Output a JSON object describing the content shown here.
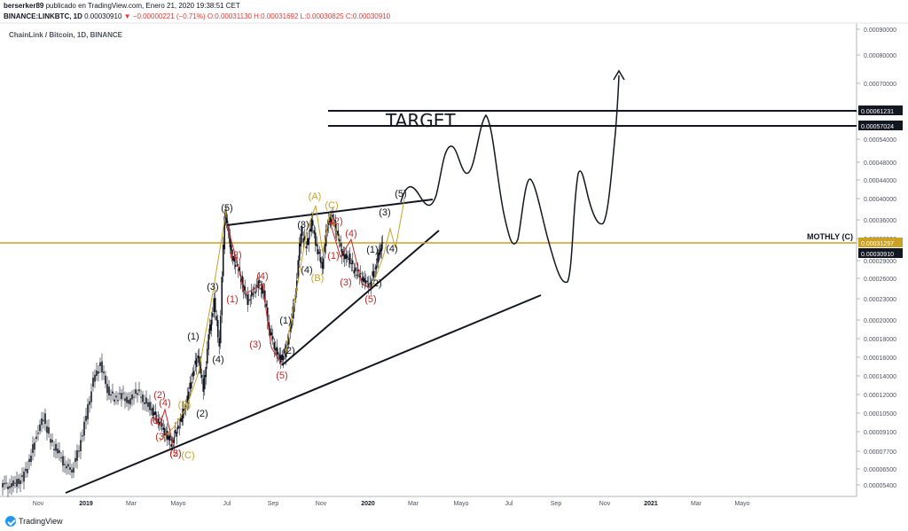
{
  "header": {
    "author": "berserker89",
    "published": "publicado en TradingView.com, Enero 21, 2020 19:38:51 CET",
    "symbol": "BINANCE:LINKBTC, 1D",
    "last": "0.00030910",
    "change": "▼ −0.00000221 (−0.71%)",
    "ohlc": "O:0.00031130 H:0.00031692 L:0.00030825 C:0.00030910",
    "chart_symbol": "ChainLink / Bitcoin, 1D, BINANCE"
  },
  "footer": {
    "brand": "TradingView",
    "logo_icon": "tradingview-logo-icon"
  },
  "colors": {
    "candle": "#131722",
    "gold": "#c9a227",
    "red": "#c62828",
    "dark": "#131722"
  },
  "chart_data": {
    "type": "line",
    "title": "",
    "y_axis_side": "right",
    "y_ticks": [
      "0.00090000",
      "0.00080000",
      "0.00070000",
      "0.00060000",
      "0.00054000",
      "0.00048000",
      "0.00044000",
      "0.00040000",
      "0.00036000",
      "0.00033000",
      "0.00029000",
      "0.00026000",
      "0.00023000",
      "0.00020000",
      "0.00018000",
      "0.00016000",
      "0.00014000",
      "0.00012000",
      "0.00010500",
      "0.00009100",
      "0.00007700",
      "0.00006500",
      "0.00005400"
    ],
    "x_ticks": [
      "Nov",
      "2019",
      "Mar",
      "Mayo",
      "Jul",
      "Sep",
      "Nov",
      "2020",
      "Mar",
      "Mayo",
      "Jul",
      "Sep",
      "Nov",
      "2021",
      "Mar",
      "Mayo"
    ],
    "price_labels": [
      {
        "value": "0.00061231",
        "style": "black"
      },
      {
        "value": "0.00057024",
        "style": "black"
      },
      {
        "value": "0.00031297",
        "style": "gold"
      },
      {
        "value": "0.00030910",
        "style": "black"
      }
    ],
    "horizontal_levels": [
      {
        "label": "TARGET",
        "values": [
          "0.00061231",
          "0.00057024"
        ]
      },
      {
        "label": "MOTHLY (C)",
        "value": "0.00031297"
      }
    ],
    "wave_labels": [
      {
        "text": "(5)",
        "color": "dark"
      },
      {
        "text": "(3)",
        "color": "dark"
      },
      {
        "text": "(1)",
        "color": "dark"
      },
      {
        "text": "(4)",
        "color": "dark"
      },
      {
        "text": "(2)",
        "color": "dark"
      },
      {
        "text": "(1)",
        "color": "red"
      },
      {
        "text": "(2)",
        "color": "red"
      },
      {
        "text": "(3)",
        "color": "red"
      },
      {
        "text": "(4)",
        "color": "red"
      },
      {
        "text": "(5)",
        "color": "red"
      },
      {
        "text": "(A)",
        "color": "gold"
      },
      {
        "text": "(B)",
        "color": "gold"
      },
      {
        "text": "(C)",
        "color": "gold"
      }
    ]
  }
}
